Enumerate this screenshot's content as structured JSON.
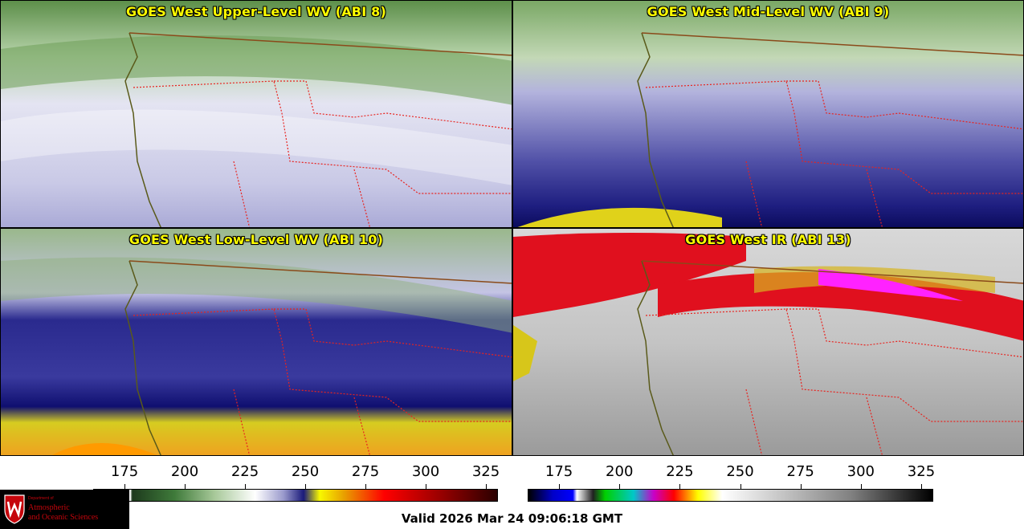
{
  "panels": [
    {
      "title": "GOES West Upper-Level WV (ABI 8)",
      "scheme": "wv"
    },
    {
      "title": "GOES West Mid-Level WV (ABI 9)",
      "scheme": "wv"
    },
    {
      "title": "GOES West Low-Level WV (ABI 10)",
      "scheme": "wv"
    },
    {
      "title": "GOES West IR (ABI 13)",
      "scheme": "ir"
    }
  ],
  "colorbars": [
    {
      "ticks": [
        "175",
        "200",
        "225",
        "250",
        "275",
        "300",
        "325"
      ],
      "min": 162,
      "max": 330
    },
    {
      "ticks": [
        "175",
        "200",
        "225",
        "250",
        "275",
        "300",
        "325"
      ],
      "min": 162,
      "max": 330
    }
  ],
  "valid_time": "Valid 2026 Mar 24 09:06:18 GMT",
  "logo": {
    "dept": "Department of",
    "line1": "Atmospheric",
    "line2": "and Oceanic Sciences"
  },
  "colors": {
    "state_border": "#e8231f",
    "country_border": "#8a4a1a",
    "coastline": "#5a5a1a"
  }
}
